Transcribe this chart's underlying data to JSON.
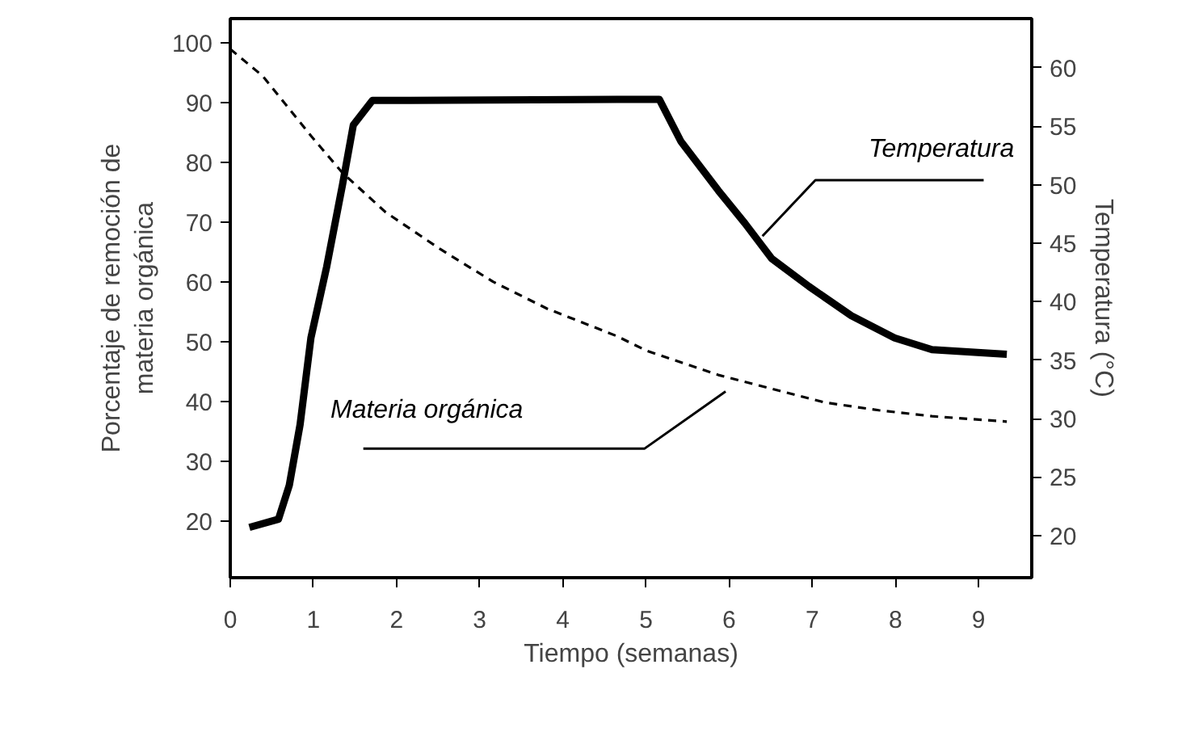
{
  "chart_data": {
    "type": "line",
    "xlabel": "Tiempo (semanas)",
    "ylabel": "Porcentaje de remoción de\nmateria orgánica",
    "y2label": "Temperatura (°C)",
    "xlim": [
      0,
      9.64
    ],
    "xticks": [
      0,
      1,
      2,
      3,
      4,
      5,
      6,
      7,
      8,
      9
    ],
    "ylim": [
      10.5,
      104
    ],
    "yticks": [
      20,
      30,
      40,
      50,
      60,
      70,
      80,
      90,
      100
    ],
    "y2lim": [
      16.4,
      64.2
    ],
    "y2ticks": [
      20,
      25,
      30,
      35,
      40,
      45,
      50,
      55,
      60
    ],
    "grid": false,
    "series": [
      {
        "name": "Temperatura",
        "axis": "y2",
        "color": "#000000",
        "line_style": "solid",
        "x": [
          0.23,
          0.58,
          0.71,
          0.84,
          0.97,
          1.16,
          1.35,
          1.48,
          1.71,
          5.16,
          5.42,
          5.87,
          6.19,
          6.51,
          6.96,
          7.47,
          7.99,
          8.44,
          9.34
        ],
        "values": [
          20.7,
          21.4,
          24.3,
          29.5,
          36.9,
          43,
          50,
          55.1,
          57.2,
          57.3,
          53.7,
          49.5,
          46.7,
          43.7,
          41.3,
          38.8,
          36.9,
          35.9,
          35.5
        ]
      },
      {
        "name": "Materia orgánica",
        "color": "#000000",
        "line_style": "dashed",
        "x": [
          0,
          0.39,
          0.97,
          1.35,
          1.87,
          2.52,
          3.16,
          3.81,
          4.65,
          5.0,
          5.87,
          6.51,
          7.15,
          7.8,
          8.44,
          9.34
        ],
        "values": [
          98.9,
          94.4,
          84.4,
          78.2,
          71.6,
          65.5,
          60,
          55.5,
          50.9,
          48.5,
          44.4,
          42.1,
          39.8,
          38.5,
          37.5,
          36.6
        ]
      }
    ]
  }
}
